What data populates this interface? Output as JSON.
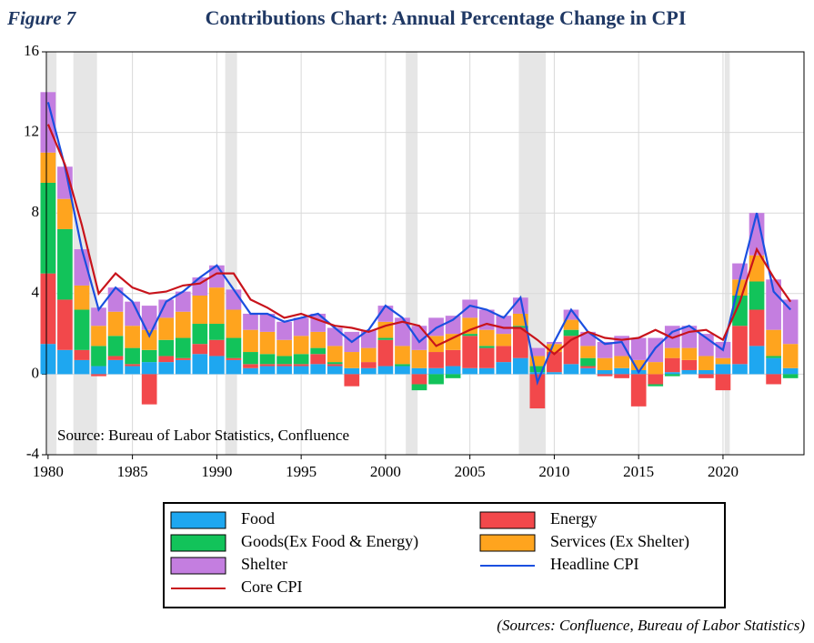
{
  "chart_data": {
    "type": "combo",
    "figure_label": "Figure 7",
    "title": "Contributions Chart: Annual Percentage Change in CPI",
    "annotation": "Source: Bureau of Labor Statistics, Confluence",
    "footer": "(Sources: Confluence, Bureau of Labor Statistics)",
    "x": [
      1980,
      1981,
      1982,
      1983,
      1984,
      1985,
      1986,
      1987,
      1988,
      1989,
      1990,
      1991,
      1992,
      1993,
      1994,
      1995,
      1996,
      1997,
      1998,
      1999,
      2000,
      2001,
      2002,
      2003,
      2004,
      2005,
      2006,
      2007,
      2008,
      2009,
      2010,
      2011,
      2012,
      2013,
      2014,
      2015,
      2016,
      2017,
      2018,
      2019,
      2020,
      2021,
      2022,
      2023,
      2024
    ],
    "xlim": [
      1979.9,
      2024.8
    ],
    "xticks": [
      1980,
      1985,
      1990,
      1995,
      2000,
      2005,
      2010,
      2015,
      2020
    ],
    "ylim": [
      -4,
      16
    ],
    "yticks": [
      -4,
      0,
      4,
      8,
      12,
      16
    ],
    "grid": true,
    "stacked": true,
    "shaded_periods": [
      [
        1980.0,
        1980.5
      ],
      [
        1981.5,
        1982.9
      ],
      [
        1990.5,
        1991.2
      ],
      [
        2001.2,
        2001.9
      ],
      [
        2007.9,
        2009.5
      ],
      [
        2020.1,
        2020.4
      ]
    ],
    "series": [
      {
        "name": "Food",
        "type": "bar",
        "color": "#1ea7f0",
        "values": [
          1.5,
          1.2,
          0.7,
          0.4,
          0.7,
          0.4,
          0.6,
          0.6,
          0.7,
          1.0,
          0.9,
          0.7,
          0.3,
          0.4,
          0.4,
          0.4,
          0.5,
          0.4,
          0.3,
          0.3,
          0.4,
          0.4,
          0.3,
          0.3,
          0.4,
          0.3,
          0.3,
          0.6,
          0.8,
          0.1,
          0.1,
          0.5,
          0.3,
          0.2,
          0.3,
          0.2,
          0.0,
          0.1,
          0.2,
          0.2,
          0.5,
          0.5,
          1.4,
          0.8,
          0.3
        ]
      },
      {
        "name": "Energy",
        "type": "bar",
        "color": "#f2484b",
        "values": [
          3.5,
          2.5,
          0.5,
          -0.1,
          0.2,
          0.1,
          -1.5,
          0.3,
          0.1,
          0.5,
          0.8,
          0.1,
          0.2,
          0.1,
          0.1,
          0.1,
          0.5,
          0.1,
          -0.6,
          0.3,
          1.3,
          0.0,
          -0.5,
          0.8,
          0.8,
          1.6,
          1.0,
          0.8,
          1.5,
          -1.7,
          1.0,
          1.4,
          0.1,
          -0.1,
          -0.2,
          -1.6,
          -0.5,
          0.7,
          0.5,
          -0.2,
          -0.8,
          1.9,
          1.8,
          -0.5,
          0.0
        ]
      },
      {
        "name": "Goods(Ex Food & Energy)",
        "type": "bar",
        "color": "#12c35a",
        "values": [
          4.5,
          3.5,
          2.0,
          1.0,
          1.0,
          0.8,
          0.6,
          0.8,
          1.0,
          1.0,
          0.8,
          1.0,
          0.6,
          0.5,
          0.4,
          0.5,
          0.3,
          0.1,
          0.0,
          0.0,
          0.1,
          0.1,
          -0.3,
          -0.5,
          -0.2,
          0.1,
          0.1,
          0.0,
          0.1,
          0.3,
          0.0,
          0.3,
          0.4,
          0.0,
          0.0,
          0.0,
          -0.1,
          -0.1,
          0.0,
          0.0,
          0.0,
          1.5,
          1.4,
          0.1,
          -0.2
        ]
      },
      {
        "name": "Services (Ex Shelter)",
        "type": "bar",
        "color": "#ffa41e",
        "values": [
          1.5,
          1.5,
          1.2,
          1.0,
          1.2,
          1.1,
          1.0,
          1.1,
          1.3,
          1.4,
          1.8,
          1.4,
          1.1,
          1.1,
          0.8,
          0.9,
          0.8,
          0.8,
          0.8,
          0.7,
          0.8,
          0.9,
          0.9,
          0.8,
          0.8,
          0.8,
          0.8,
          0.6,
          0.6,
          0.5,
          0.4,
          0.5,
          0.6,
          0.6,
          0.6,
          0.5,
          0.6,
          0.5,
          0.6,
          0.7,
          0.3,
          0.8,
          1.3,
          1.3,
          1.2
        ]
      },
      {
        "name": "Shelter",
        "type": "bar",
        "color": "#c47ee0",
        "values": [
          3.0,
          1.6,
          1.8,
          0.9,
          1.2,
          1.2,
          1.2,
          0.9,
          1.0,
          0.9,
          1.1,
          1.0,
          0.8,
          0.9,
          0.9,
          0.9,
          0.9,
          0.9,
          1.0,
          0.9,
          0.8,
          1.4,
          1.2,
          0.9,
          0.9,
          0.9,
          1.0,
          0.9,
          0.8,
          0.4,
          0.1,
          0.5,
          0.7,
          0.8,
          1.0,
          1.1,
          1.2,
          1.1,
          1.1,
          1.1,
          0.8,
          0.8,
          2.1,
          2.5,
          2.2
        ]
      },
      {
        "name": "Headline CPI",
        "type": "line",
        "color": "#1a4fe0",
        "values": [
          13.5,
          10.3,
          6.2,
          3.2,
          4.3,
          3.6,
          1.9,
          3.6,
          4.1,
          4.8,
          5.4,
          4.2,
          3.0,
          3.0,
          2.6,
          2.8,
          3.0,
          2.3,
          1.6,
          2.2,
          3.4,
          2.8,
          1.6,
          2.3,
          2.7,
          3.4,
          3.2,
          2.8,
          3.8,
          -0.4,
          1.6,
          3.2,
          2.1,
          1.5,
          1.6,
          0.1,
          1.3,
          2.1,
          2.4,
          1.8,
          1.2,
          4.7,
          8.0,
          4.1,
          3.2
        ]
      },
      {
        "name": "Core CPI",
        "type": "line",
        "color": "#c8131b",
        "values": [
          12.4,
          10.4,
          7.4,
          4.0,
          5.0,
          4.3,
          4.0,
          4.1,
          4.4,
          4.5,
          5.0,
          5.0,
          3.7,
          3.3,
          2.8,
          3.0,
          2.7,
          2.4,
          2.3,
          2.1,
          2.4,
          2.6,
          2.4,
          1.4,
          1.8,
          2.2,
          2.5,
          2.3,
          2.3,
          1.7,
          1.0,
          1.7,
          2.1,
          1.8,
          1.7,
          1.8,
          2.2,
          1.8,
          2.1,
          2.2,
          1.7,
          3.6,
          6.2,
          4.8,
          3.6
        ]
      }
    ]
  }
}
